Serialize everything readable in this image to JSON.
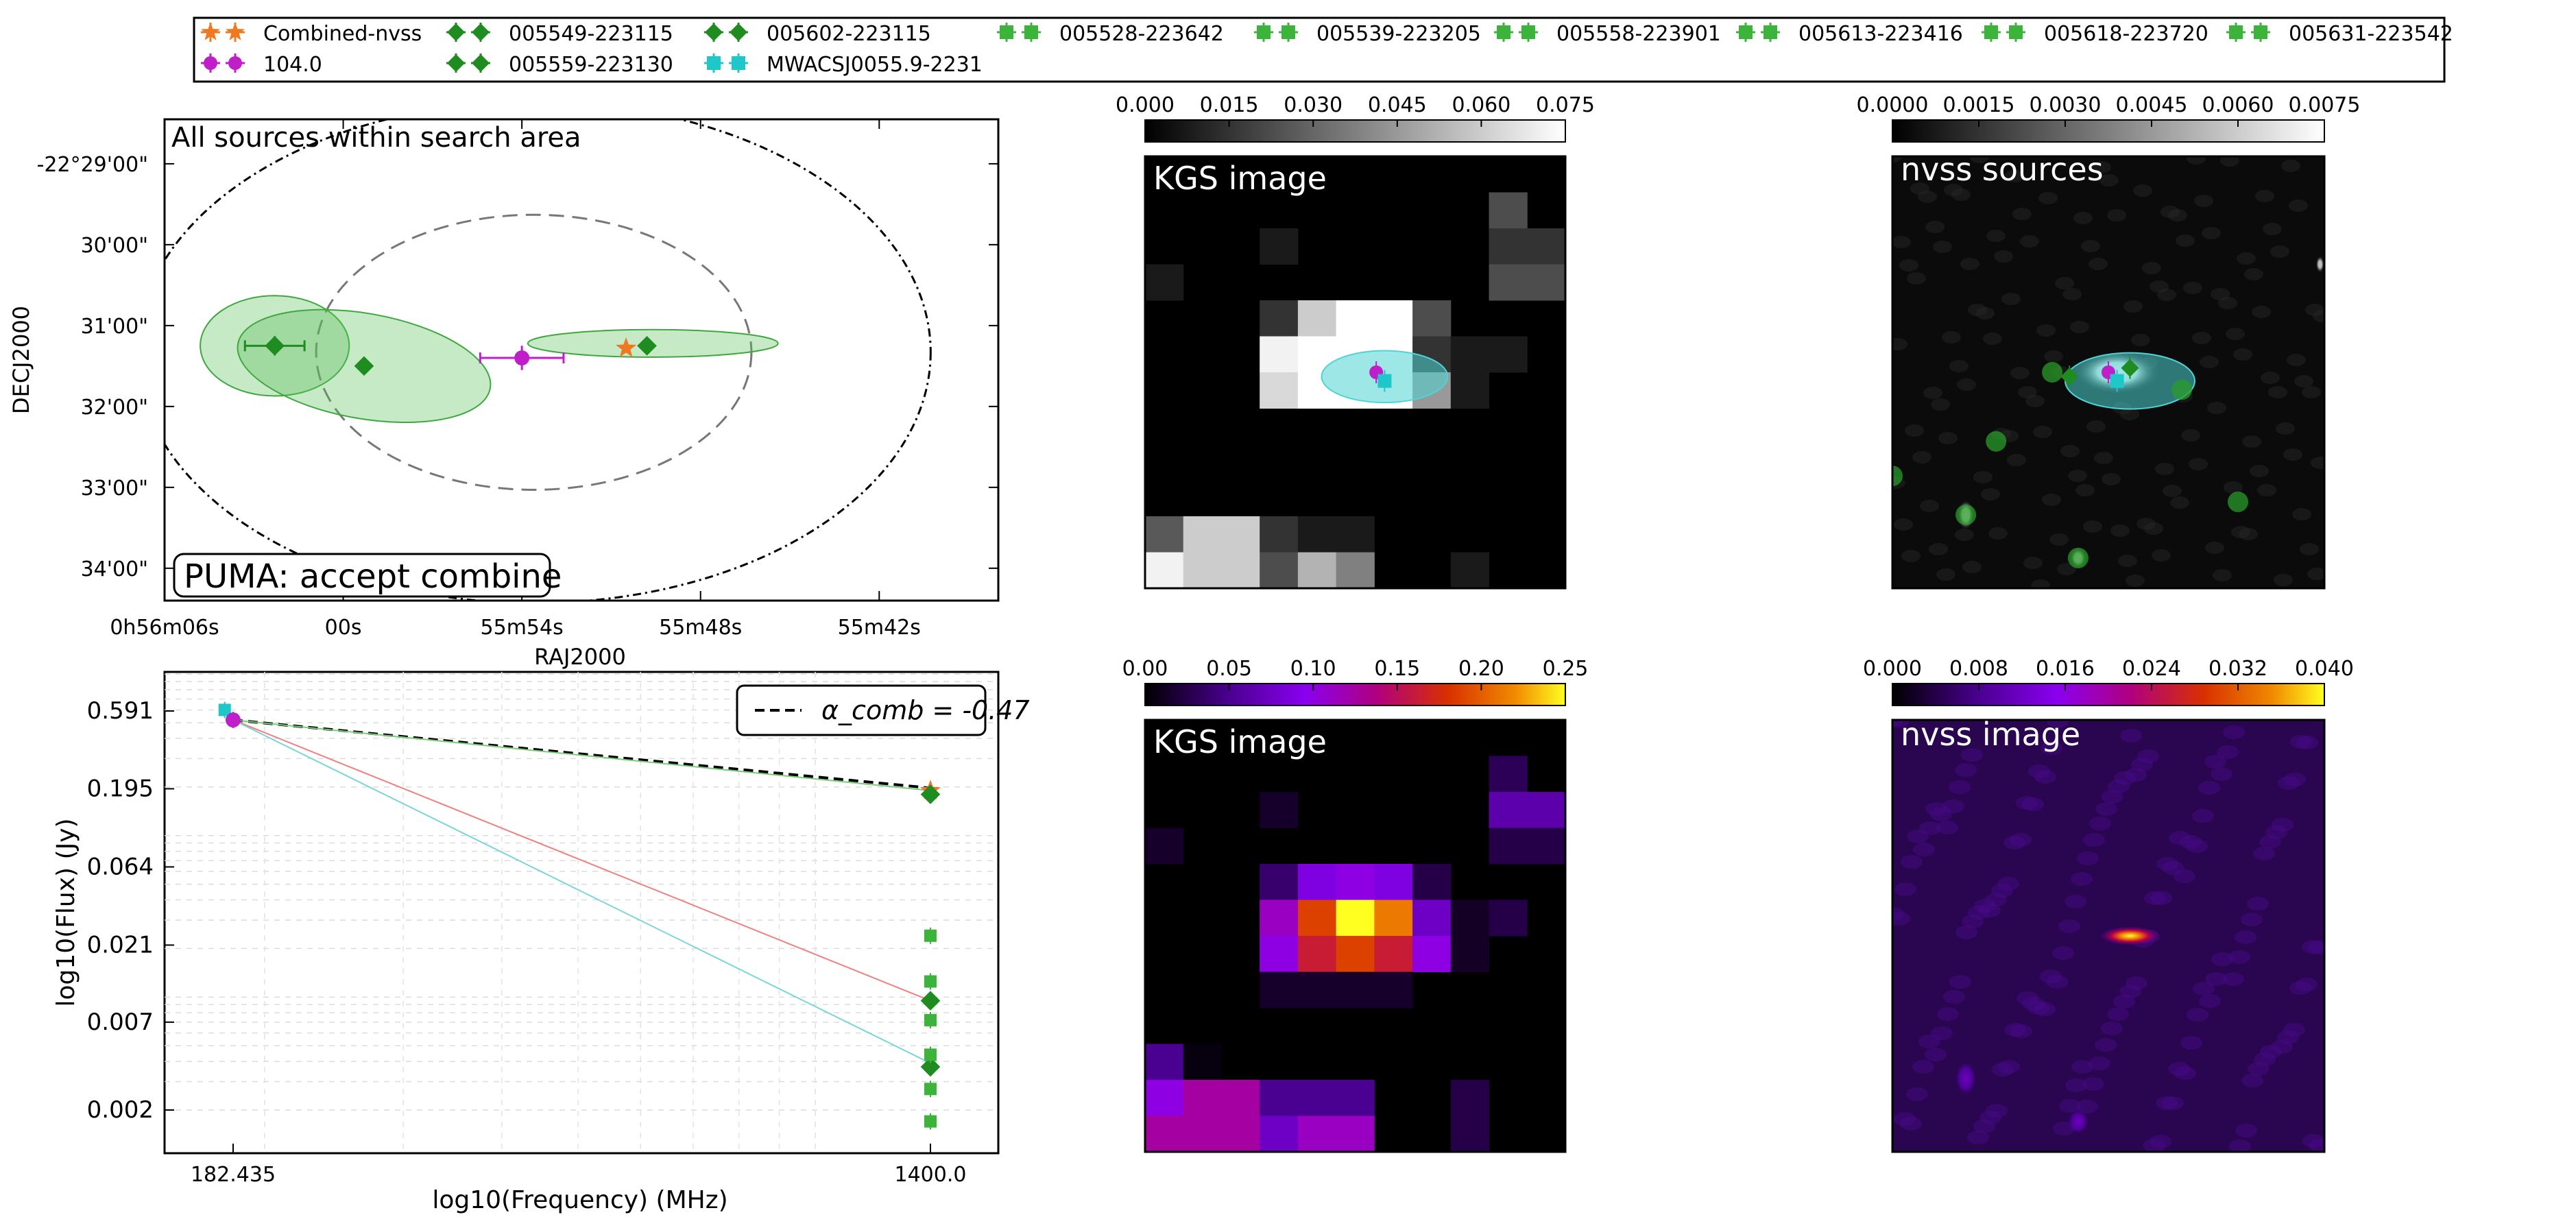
{
  "legend": {
    "entries": [
      {
        "label": "Combined-nvss",
        "marker": "star",
        "color": "#f07820",
        "bars": true,
        "row": 0,
        "col": 0
      },
      {
        "label": "104.0",
        "marker": "circle",
        "color": "#c01ec8",
        "bars": true,
        "row": 1,
        "col": 0
      },
      {
        "label": "005549-223115",
        "marker": "diamond",
        "color": "#1e8c1e",
        "bars": true,
        "row": 0,
        "col": 1
      },
      {
        "label": "005559-223130",
        "marker": "diamond",
        "color": "#1e8c1e",
        "bars": true,
        "row": 1,
        "col": 1
      },
      {
        "label": "005602-223115",
        "marker": "diamond",
        "color": "#1e8c1e",
        "bars": true,
        "row": 0,
        "col": 2
      },
      {
        "label": "MWACSJ0055.9-2231",
        "marker": "square",
        "color": "#1ec8c8",
        "bars": true,
        "row": 1,
        "col": 2
      },
      {
        "label": "005528-223642",
        "marker": "square",
        "color": "#3cb43c",
        "bars": true,
        "row": 0,
        "col": 3
      },
      {
        "label": "005539-223205",
        "marker": "square",
        "color": "#3cb43c",
        "bars": true,
        "row": 0,
        "col": 4
      },
      {
        "label": "005558-223901",
        "marker": "square",
        "color": "#3cb43c",
        "bars": true,
        "row": 0,
        "col": 5
      },
      {
        "label": "005613-223416",
        "marker": "square",
        "color": "#3cb43c",
        "bars": true,
        "row": 0,
        "col": 6
      },
      {
        "label": "005618-223720",
        "marker": "square",
        "color": "#3cb43c",
        "bars": true,
        "row": 0,
        "col": 7
      },
      {
        "label": "005631-223542",
        "marker": "square",
        "color": "#3cb43c",
        "bars": true,
        "row": 0,
        "col": 8
      }
    ]
  },
  "chart_data": [
    {
      "type": "scatter",
      "title": "All sources within search area",
      "xlabel": "RAJ2000",
      "ylabel": "DECJ2000",
      "xticks": [
        "0h56m06s",
        "00s",
        "55m54s",
        "55m48s",
        "55m42s"
      ],
      "yticks": [
        "-22°29'00\"",
        "30'00\"",
        "31'00\"",
        "32'00\"",
        "33'00\"",
        "34'00\""
      ],
      "xlim_seconds": [
        366,
        338
      ],
      "ylim_arcmin": [
        -34.4,
        -28.45
      ],
      "annotation": "PUMA: accept combine",
      "search_circles": [
        {
          "center": [
            353.6,
            -31.33
          ],
          "radius_arcmin": 3.1,
          "style": "dotted"
        },
        {
          "center": [
            353.6,
            -31.33
          ],
          "radius_arcmin": 1.7,
          "style": "dashed"
        }
      ],
      "points": [
        {
          "name": "005602-223115",
          "marker": "diamond",
          "color": "#1e8c1e",
          "ra": 362.3,
          "dec": -31.25,
          "ra_err": 1.0,
          "dec_err": 0.12
        },
        {
          "name": "005559-223130",
          "marker": "diamond",
          "color": "#1e8c1e",
          "ra": 359.3,
          "dec": -31.5
        },
        {
          "name": "104.0",
          "marker": "circle",
          "color": "#c01ec8",
          "ra": 354.0,
          "dec": -31.4,
          "ra_err": 1.4,
          "dec_err": 0.15
        },
        {
          "name": "Combined-nvss",
          "marker": "star",
          "color": "#f07820",
          "ra": 350.5,
          "dec": -31.28
        },
        {
          "name": "005549-223115",
          "marker": "diamond",
          "color": "#1e8c1e",
          "ra": 349.8,
          "dec": -31.25
        }
      ],
      "ellipses": [
        {
          "center": [
            362.3,
            -31.25
          ],
          "semi_major_s": 2.5,
          "semi_minor_arcmin": 0.62,
          "angle_deg": 0
        },
        {
          "center": [
            359.3,
            -31.5
          ],
          "semi_major_s": 4.3,
          "semi_minor_arcmin": 0.65,
          "angle_deg": 10
        },
        {
          "center": [
            349.6,
            -31.22
          ],
          "semi_major_s": 4.2,
          "semi_minor_arcmin": 0.17,
          "angle_deg": 0
        }
      ]
    },
    {
      "type": "scatter",
      "xlabel": "log10(Frequency) (MHz)",
      "ylabel": "log10(Flux) (Jy)",
      "xticks": [
        "182.435",
        "1400.0"
      ],
      "yticks": [
        "0.591",
        "0.195",
        "0.064",
        "0.021",
        "0.007",
        "0.002"
      ],
      "legend": "α_comb = -0.47",
      "fit_lines": [
        {
          "name": "combined fit",
          "style": "dashed",
          "color": "#000000",
          "from": [
            182.435,
            0.52
          ],
          "to": [
            1400.0,
            0.197
          ]
        },
        {
          "name": "104.0 fit",
          "style": "solid",
          "color": "#f08080",
          "from": [
            182.435,
            0.52
          ],
          "to": [
            1400.0,
            0.0095
          ]
        },
        {
          "name": "MWACS fit",
          "style": "solid",
          "color": "#7ad6d6",
          "from": [
            182.435,
            0.52
          ],
          "to": [
            1400.0,
            0.0039
          ]
        },
        {
          "name": "green fit",
          "style": "solid",
          "color": "#7acc7a",
          "from": [
            182.435,
            0.52
          ],
          "to": [
            1400.0,
            0.19
          ]
        }
      ],
      "points": [
        {
          "name": "MWACSJ0055.9-2231",
          "marker": "square",
          "color": "#1ec8c8",
          "freq": 178.0,
          "flux": 0.6
        },
        {
          "name": "104.0",
          "marker": "circle",
          "color": "#c01ec8",
          "freq": 182.435,
          "flux": 0.52
        },
        {
          "name": "Combined-nvss",
          "marker": "star",
          "color": "#f07820",
          "freq": 1400.0,
          "flux": 0.19
        },
        {
          "name": "005549-223115",
          "marker": "diamond",
          "color": "#1e8c1e",
          "freq": 1400.0,
          "flux": 0.18
        },
        {
          "name": "005602-223115",
          "marker": "diamond",
          "color": "#1e8c1e",
          "freq": 1400.0,
          "flux": 0.0095
        },
        {
          "name": "005559-223130",
          "marker": "diamond",
          "color": "#1e8c1e",
          "freq": 1400.0,
          "flux": 0.0037
        },
        {
          "name": "005528-223642",
          "marker": "square",
          "color": "#3cb43c",
          "freq": 1400.0,
          "flux": 0.024
        },
        {
          "name": "005539-223205",
          "marker": "square",
          "color": "#3cb43c",
          "freq": 1400.0,
          "flux": 0.0125
        },
        {
          "name": "005558-223901",
          "marker": "square",
          "color": "#3cb43c",
          "freq": 1400.0,
          "flux": 0.0072
        },
        {
          "name": "005613-223416",
          "marker": "square",
          "color": "#3cb43c",
          "freq": 1400.0,
          "flux": 0.0044
        },
        {
          "name": "005618-223720",
          "marker": "square",
          "color": "#3cb43c",
          "freq": 1400.0,
          "flux": 0.0027
        },
        {
          "name": "005631-223542",
          "marker": "square",
          "color": "#3cb43c",
          "freq": 1400.0,
          "flux": 0.0017
        }
      ]
    },
    {
      "type": "heatmap",
      "title": "KGS image",
      "colormap": "gray",
      "colorbar_ticks": [
        "0.000",
        "0.015",
        "0.030",
        "0.045",
        "0.060",
        "0.075"
      ],
      "grid": [
        [
          0,
          0,
          0,
          0,
          0,
          0,
          0,
          0,
          0,
          0,
          0
        ],
        [
          0,
          0,
          0,
          0,
          0,
          0,
          0,
          0,
          0,
          0.3,
          0
        ],
        [
          0,
          0,
          0,
          0.1,
          0,
          0,
          0,
          0,
          0,
          0.2,
          0.2
        ],
        [
          0.1,
          0,
          0,
          0,
          0,
          0,
          0,
          0,
          0,
          0.3,
          0.3
        ],
        [
          0,
          0,
          0,
          0.2,
          0.8,
          1,
          1,
          0.3,
          0,
          0,
          0
        ],
        [
          0,
          0,
          0,
          0.95,
          1,
          1,
          1,
          0.2,
          0.1,
          0.1,
          0
        ],
        [
          0,
          0,
          0,
          0.85,
          1,
          1,
          1,
          0.6,
          0.1,
          0,
          0
        ],
        [
          0,
          0,
          0,
          0,
          0,
          0,
          0,
          0,
          0,
          0,
          0
        ],
        [
          0,
          0,
          0,
          0,
          0,
          0,
          0,
          0,
          0,
          0,
          0
        ],
        [
          0,
          0,
          0,
          0,
          0,
          0,
          0,
          0,
          0,
          0,
          0
        ],
        [
          0.35,
          0.8,
          0.8,
          0.2,
          0.1,
          0.1,
          0,
          0,
          0,
          0,
          0
        ],
        [
          0.95,
          0.8,
          0.8,
          0.3,
          0.7,
          0.5,
          0,
          0,
          0.1,
          0,
          0
        ]
      ],
      "overlays": [
        {
          "shape": "ellipse",
          "color": "#4fd4d4",
          "cx": 0.57,
          "cy": 0.51,
          "rx": 0.15,
          "ry": 0.06
        },
        {
          "shape": "circle",
          "color": "#c01ec8",
          "cx": 0.55,
          "cy": 0.5
        },
        {
          "shape": "square",
          "color": "#1ec8c8",
          "cx": 0.57,
          "cy": 0.52
        }
      ]
    },
    {
      "type": "heatmap",
      "title": "nvss sources",
      "colormap": "gray",
      "colorbar_ticks": [
        "0.0000",
        "0.0015",
        "0.0030",
        "0.0045",
        "0.0060",
        "0.0075"
      ],
      "blobs": [
        {
          "cx": 0.52,
          "cy": 0.5,
          "rx": 0.1,
          "ry": 0.05,
          "v": 1.0
        },
        {
          "cx": 0.17,
          "cy": 0.83,
          "rx": 0.02,
          "ry": 0.035,
          "v": 0.95
        },
        {
          "cx": 0.43,
          "cy": 0.93,
          "rx": 0.02,
          "ry": 0.025,
          "v": 0.9
        },
        {
          "cx": 0.99,
          "cy": 0.25,
          "rx": 0.01,
          "ry": 0.02,
          "v": 0.6
        }
      ],
      "overlays": [
        {
          "shape": "ellipse",
          "color": "#4fd4d4",
          "cx": 0.55,
          "cy": 0.52,
          "rx": 0.15,
          "ry": 0.065
        },
        {
          "shape": "dot",
          "color": "#2a9c2a",
          "cx": 0.37,
          "cy": 0.5
        },
        {
          "shape": "dot",
          "color": "#2a9c2a",
          "cx": 0.24,
          "cy": 0.66
        },
        {
          "shape": "dot",
          "color": "#2a9c2a",
          "cx": 0.0,
          "cy": 0.74
        },
        {
          "shape": "dot",
          "color": "#2a9c2a",
          "cx": 0.17,
          "cy": 0.83
        },
        {
          "shape": "dot",
          "color": "#2a9c2a",
          "cx": 0.43,
          "cy": 0.93
        },
        {
          "shape": "dot",
          "color": "#2a9c2a",
          "cx": 0.8,
          "cy": 0.8
        },
        {
          "shape": "dot",
          "color": "#2a9c2a",
          "cx": 0.67,
          "cy": 0.54
        },
        {
          "shape": "diamond",
          "color": "#1e8c1e",
          "cx": 0.41,
          "cy": 0.51
        },
        {
          "shape": "diamond",
          "color": "#1e8c1e",
          "cx": 0.55,
          "cy": 0.49
        },
        {
          "shape": "circle",
          "color": "#c01ec8",
          "cx": 0.5,
          "cy": 0.5
        },
        {
          "shape": "square",
          "color": "#1ec8c8",
          "cx": 0.52,
          "cy": 0.52
        }
      ]
    },
    {
      "type": "heatmap",
      "title": "KGS image",
      "colormap": "gnuplot",
      "colorbar_ticks": [
        "0.00",
        "0.05",
        "0.10",
        "0.15",
        "0.20",
        "0.25"
      ],
      "grid": [
        [
          0,
          0,
          0,
          0,
          0,
          0,
          0,
          0,
          0,
          0,
          0
        ],
        [
          0,
          0,
          0,
          0,
          0,
          0,
          0,
          0,
          0,
          0.12,
          0
        ],
        [
          0,
          0,
          0,
          0.06,
          0,
          0,
          0,
          0,
          0,
          0.25,
          0.25
        ],
        [
          0.06,
          0,
          0,
          0,
          0,
          0,
          0,
          0,
          0,
          0.1,
          0.1
        ],
        [
          0,
          0,
          0,
          0.15,
          0.35,
          0.4,
          0.35,
          0.1,
          0,
          0,
          0
        ],
        [
          0,
          0,
          0,
          0.45,
          0.75,
          1.0,
          0.85,
          0.3,
          0.05,
          0.1,
          0
        ],
        [
          0,
          0,
          0,
          0.4,
          0.65,
          0.75,
          0.65,
          0.4,
          0.05,
          0,
          0
        ],
        [
          0,
          0,
          0,
          0.06,
          0.06,
          0.06,
          0.06,
          0,
          0,
          0,
          0
        ],
        [
          0,
          0,
          0,
          0,
          0,
          0,
          0,
          0,
          0,
          0,
          0
        ],
        [
          0.2,
          0.02,
          0,
          0,
          0,
          0,
          0,
          0,
          0,
          0,
          0
        ],
        [
          0.4,
          0.5,
          0.5,
          0.2,
          0.2,
          0.2,
          0,
          0,
          0.1,
          0,
          0
        ],
        [
          0.5,
          0.5,
          0.5,
          0.3,
          0.45,
          0.45,
          0,
          0,
          0.1,
          0,
          0
        ]
      ]
    },
    {
      "type": "heatmap",
      "title": "nvss image",
      "colormap": "gnuplot",
      "colorbar_ticks": [
        "0.000",
        "0.008",
        "0.016",
        "0.024",
        "0.032",
        "0.040"
      ],
      "blobs": [
        {
          "cx": 0.55,
          "cy": 0.5,
          "rx": 0.07,
          "ry": 0.022,
          "v": 1.0
        },
        {
          "cx": 0.17,
          "cy": 0.83,
          "rx": 0.025,
          "ry": 0.04,
          "v": 0.45
        },
        {
          "cx": 0.43,
          "cy": 0.93,
          "rx": 0.025,
          "ry": 0.03,
          "v": 0.45
        }
      ]
    }
  ]
}
